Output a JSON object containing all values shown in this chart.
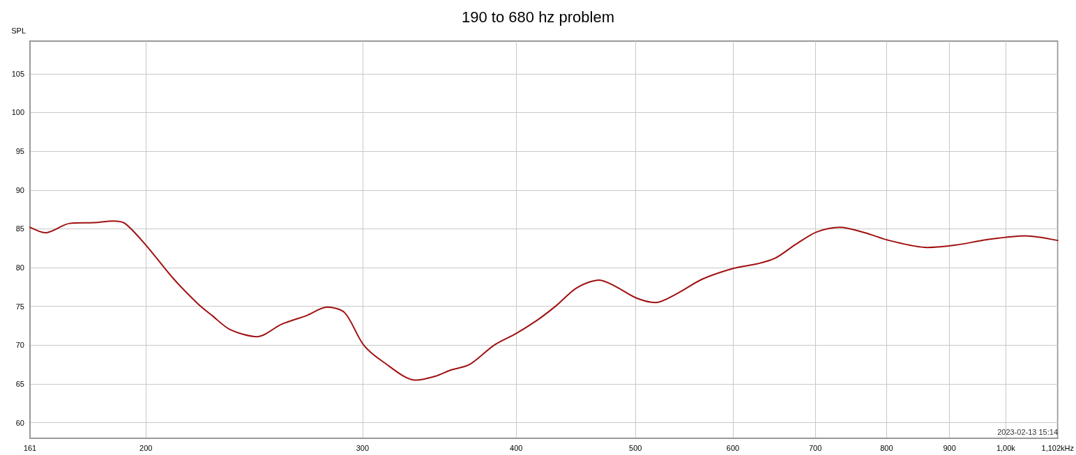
{
  "chart_data": {
    "type": "line",
    "title": "190 to 680 hz problem",
    "ylabel": "SPL",
    "annotations": [
      "2023-02-13 15:14"
    ],
    "log": "x",
    "grid": true,
    "marker": "none",
    "line_style": "solid",
    "xlim": [
      161,
      1102
    ],
    "ylim": [
      58,
      109.2
    ],
    "xticks": [
      161,
      200,
      300,
      400,
      500,
      600,
      700,
      800,
      900,
      {
        "value": 1000,
        "label": "1,00k"
      },
      {
        "value": 1102,
        "label": "1,102kHz"
      }
    ],
    "yticks": [
      60,
      65,
      70,
      75,
      80,
      85,
      90,
      95,
      100,
      105
    ],
    "series": [
      {
        "color": "#a01010",
        "x": [
          161,
          165.7,
          173.4,
          181.5,
          188.1,
          192.3,
          200,
          210.8,
          220.6,
          226.5,
          234.2,
          246.4,
          257.8,
          270,
          280.8,
          290.1,
          300.4,
          311.5,
          331.4,
          343.7,
          353.9,
          366.5,
          383.8,
          399.9,
          417.5,
          431.1,
          448,
          467.3,
          481.4,
          500.5,
          519,
          541.1,
          566.4,
          600.4,
          628.4,
          649.1,
          675,
          702,
          733,
          768.1,
          803.9,
          863.4,
          910,
          964.9,
          1037,
          1102
        ],
        "values": [
          85.2,
          84.5,
          85.7,
          85.8,
          86.0,
          85.7,
          82.9,
          78.5,
          75.3,
          73.8,
          72.0,
          71.1,
          72.7,
          73.8,
          74.9,
          74.2,
          70.1,
          67.9,
          65.5,
          66.0,
          66.8,
          67.5,
          70.0,
          71.5,
          73.4,
          75.1,
          77.4,
          78.4,
          77.6,
          76.1,
          75.5,
          76.7,
          78.5,
          79.9,
          80.5,
          81.2,
          83.0,
          84.6,
          85.2,
          84.5,
          83.5,
          82.6,
          82.9,
          83.6,
          84.1,
          83.5
        ]
      }
    ]
  }
}
